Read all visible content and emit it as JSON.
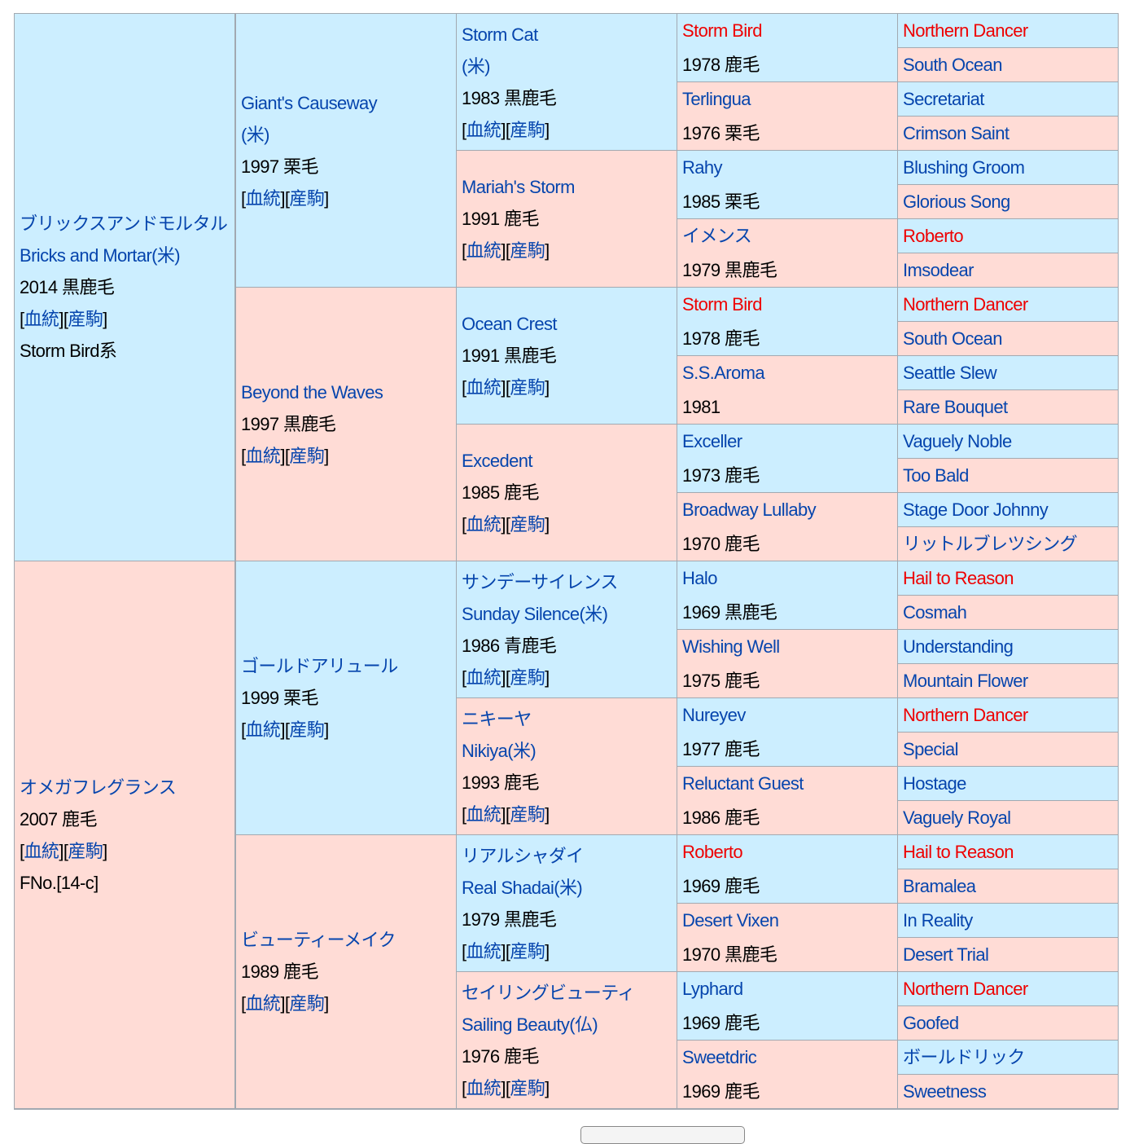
{
  "colors": {
    "sire": "#cceeff",
    "dam": "#ffdcd6",
    "link": "#0645ad",
    "highlight": "#ee0000"
  },
  "links_labels": [
    "血統",
    "産駒"
  ],
  "gen1": [
    {
      "lines": [
        {
          "t": "ブリックスアンドモルタル",
          "link": true
        },
        {
          "t": "Bricks and Mortar(米)",
          "link": true
        },
        {
          "t": "2014 黒鹿毛"
        },
        {
          "links": true
        },
        {
          "t": "Storm Bird系"
        }
      ]
    },
    {
      "lines": [
        {
          "t": "オメガフレグランス",
          "link": true
        },
        {
          "t": "2007 鹿毛"
        },
        {
          "links": true
        },
        {
          "t": "FNo.[14-c]"
        }
      ]
    }
  ],
  "gen2": [
    {
      "lines": [
        {
          "t": "Giant's Causeway",
          "link": true
        },
        {
          "t": "(米)",
          "link": true
        },
        {
          "t": "1997 栗毛"
        },
        {
          "links": true
        }
      ]
    },
    {
      "lines": [
        {
          "t": "Beyond the Waves",
          "link": true
        },
        {
          "t": "1997 黒鹿毛"
        },
        {
          "links": true
        }
      ]
    },
    {
      "lines": [
        {
          "t": "ゴールドアリュール",
          "link": true
        },
        {
          "t": "1999 栗毛"
        },
        {
          "links": true
        }
      ]
    },
    {
      "lines": [
        {
          "t": "ビューティーメイク",
          "link": true
        },
        {
          "t": "1989 鹿毛"
        },
        {
          "links": true
        }
      ]
    }
  ],
  "gen3": [
    {
      "lines": [
        {
          "t": "Storm Cat",
          "link": true
        },
        {
          "t": "(米)",
          "link": true
        },
        {
          "t": "1983 黒鹿毛"
        },
        {
          "links": true
        }
      ]
    },
    {
      "lines": [
        {
          "t": "Mariah's Storm",
          "link": true
        },
        {
          "t": "1991 鹿毛"
        },
        {
          "links": true
        }
      ]
    },
    {
      "lines": [
        {
          "t": "Ocean Crest",
          "link": true
        },
        {
          "t": "1991 黒鹿毛"
        },
        {
          "links": true
        }
      ]
    },
    {
      "lines": [
        {
          "t": "Excedent",
          "link": true
        },
        {
          "t": "1985 鹿毛"
        },
        {
          "links": true
        }
      ]
    },
    {
      "lines": [
        {
          "t": "サンデーサイレンス",
          "link": true
        },
        {
          "t": "Sunday Silence(米)",
          "link": true
        },
        {
          "t": "1986 青鹿毛"
        },
        {
          "links": true
        }
      ]
    },
    {
      "lines": [
        {
          "t": "ニキーヤ",
          "link": true
        },
        {
          "t": "Nikiya(米)",
          "link": true
        },
        {
          "t": "1993 鹿毛"
        },
        {
          "links": true
        }
      ]
    },
    {
      "lines": [
        {
          "t": "リアルシャダイ",
          "link": true
        },
        {
          "t": "Real Shadai(米)",
          "link": true
        },
        {
          "t": "1979 黒鹿毛"
        },
        {
          "links": true
        }
      ]
    },
    {
      "lines": [
        {
          "t": "セイリングビューティ",
          "link": true
        },
        {
          "t": "Sailing Beauty(仏)",
          "link": true
        },
        {
          "t": "1976 鹿毛"
        },
        {
          "links": true
        }
      ]
    }
  ],
  "gen4": [
    {
      "name": "Storm Bird",
      "red": true,
      "info": "1978 鹿毛"
    },
    {
      "name": "Terlingua",
      "info": "1976 栗毛"
    },
    {
      "name": "Rahy",
      "info": "1985 栗毛"
    },
    {
      "name": "イメンス",
      "info": "1979 黒鹿毛"
    },
    {
      "name": "Storm Bird",
      "red": true,
      "info": "1978 鹿毛"
    },
    {
      "name": "S.S.Aroma",
      "info": "1981"
    },
    {
      "name": "Exceller",
      "info": "1973 鹿毛"
    },
    {
      "name": "Broadway Lullaby",
      "info": "1970 鹿毛"
    },
    {
      "name": "Halo",
      "info": "1969 黒鹿毛"
    },
    {
      "name": "Wishing Well",
      "info": "1975 鹿毛"
    },
    {
      "name": "Nureyev",
      "info": "1977 鹿毛"
    },
    {
      "name": "Reluctant Guest",
      "info": "1986 鹿毛"
    },
    {
      "name": "Roberto",
      "red": true,
      "info": "1969 鹿毛"
    },
    {
      "name": "Desert Vixen",
      "info": "1970 黒鹿毛"
    },
    {
      "name": "Lyphard",
      "info": "1969 鹿毛"
    },
    {
      "name": "Sweetdric",
      "info": "1969 鹿毛"
    }
  ],
  "gen5": [
    {
      "name": "Northern Dancer",
      "red": true
    },
    {
      "name": "South Ocean"
    },
    {
      "name": "Secretariat"
    },
    {
      "name": "Crimson Saint"
    },
    {
      "name": "Blushing Groom"
    },
    {
      "name": "Glorious Song"
    },
    {
      "name": "Roberto",
      "red": true
    },
    {
      "name": "Imsodear"
    },
    {
      "name": "Northern Dancer",
      "red": true
    },
    {
      "name": "South Ocean"
    },
    {
      "name": "Seattle Slew"
    },
    {
      "name": "Rare Bouquet"
    },
    {
      "name": "Vaguely Noble"
    },
    {
      "name": "Too Bald"
    },
    {
      "name": "Stage Door Johnny"
    },
    {
      "name": "リットルブレツシング"
    },
    {
      "name": "Hail to Reason",
      "red": true
    },
    {
      "name": "Cosmah"
    },
    {
      "name": "Understanding"
    },
    {
      "name": "Mountain Flower"
    },
    {
      "name": "Northern Dancer",
      "red": true
    },
    {
      "name": "Special"
    },
    {
      "name": "Hostage"
    },
    {
      "name": "Vaguely Royal"
    },
    {
      "name": "Hail to Reason",
      "red": true
    },
    {
      "name": "Bramalea"
    },
    {
      "name": "In Reality"
    },
    {
      "name": "Desert Trial"
    },
    {
      "name": "Northern Dancer",
      "red": true
    },
    {
      "name": "Goofed"
    },
    {
      "name": "ボールドリック"
    },
    {
      "name": "Sweetness"
    }
  ]
}
